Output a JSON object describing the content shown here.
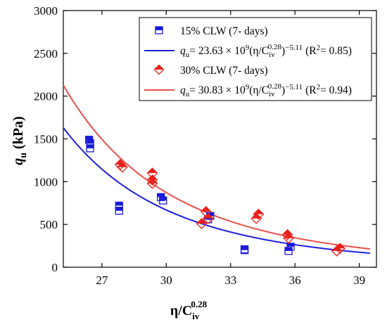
{
  "chart_data": {
    "type": "scatter",
    "xlabel": "η/C",
    "xlabel_sub": "iv",
    "xlabel_sup": "0.28",
    "ylabel": "q",
    "ylabel_sub": "u",
    "ylabel_unit": " (kPa)",
    "xlim": [
      25.2,
      39.8
    ],
    "ylim": [
      0,
      3000
    ],
    "xticks": [
      27,
      30,
      33,
      36,
      39
    ],
    "yticks": [
      0,
      500,
      1000,
      1500,
      2000,
      2500,
      3000
    ],
    "grid": false,
    "legend_position": "top-right",
    "series": [
      {
        "name": "15% CLW (7- days)",
        "marker": "square",
        "color": "#1a1adb",
        "points": [
          [
            26.4,
            1490
          ],
          [
            26.45,
            1450
          ],
          [
            26.45,
            1390
          ],
          [
            27.8,
            720
          ],
          [
            27.8,
            660
          ],
          [
            29.75,
            820
          ],
          [
            29.85,
            780
          ],
          [
            32.05,
            600
          ],
          [
            31.95,
            560
          ],
          [
            33.65,
            210
          ],
          [
            33.65,
            200
          ],
          [
            35.8,
            240
          ],
          [
            35.7,
            190
          ]
        ]
      },
      {
        "name": "30% CLW (7- days)",
        "marker": "diamond",
        "color": "#e8201a",
        "points": [
          [
            27.85,
            1200
          ],
          [
            27.95,
            1170
          ],
          [
            29.35,
            1100
          ],
          [
            29.35,
            1020
          ],
          [
            29.35,
            980
          ],
          [
            31.85,
            650
          ],
          [
            31.65,
            510
          ],
          [
            31.95,
            570
          ],
          [
            34.3,
            620
          ],
          [
            34.2,
            570
          ],
          [
            35.65,
            380
          ],
          [
            35.7,
            340
          ],
          [
            38.1,
            220
          ],
          [
            37.95,
            190
          ]
        ]
      }
    ],
    "fits": [
      {
        "series": "15% CLW (7- days)",
        "color": "#1f1fe0",
        "a": 23630000000.0,
        "b": -5.11,
        "formula_lead": "q",
        "formula_lead_sub": "u",
        "formula_body": "= 23.63 × 10",
        "formula_exp": "9",
        "formula_mid": "(η/C",
        "formula_c_sub": "iv",
        "formula_c_sup": "0.28",
        "formula_close": ")",
        "formula_pow": "−5.11",
        "r2_label": " (R",
        "r2_sup": "2",
        "r2_value": "= 0.85)"
      },
      {
        "series": "30% CLW (7- days)",
        "color": "#e8504a",
        "a": 30830000000.0,
        "b": -5.11,
        "formula_lead": "q",
        "formula_lead_sub": "u",
        "formula_body": "= 30.83 × 10",
        "formula_exp": "9",
        "formula_mid": "(η/C",
        "formula_c_sub": "iv",
        "formula_c_sup": "0.28",
        "formula_close": ")",
        "formula_pow": "−5.11",
        "r2_label": " (R",
        "r2_sup": "2",
        "r2_value": "= 0.94)"
      }
    ]
  }
}
